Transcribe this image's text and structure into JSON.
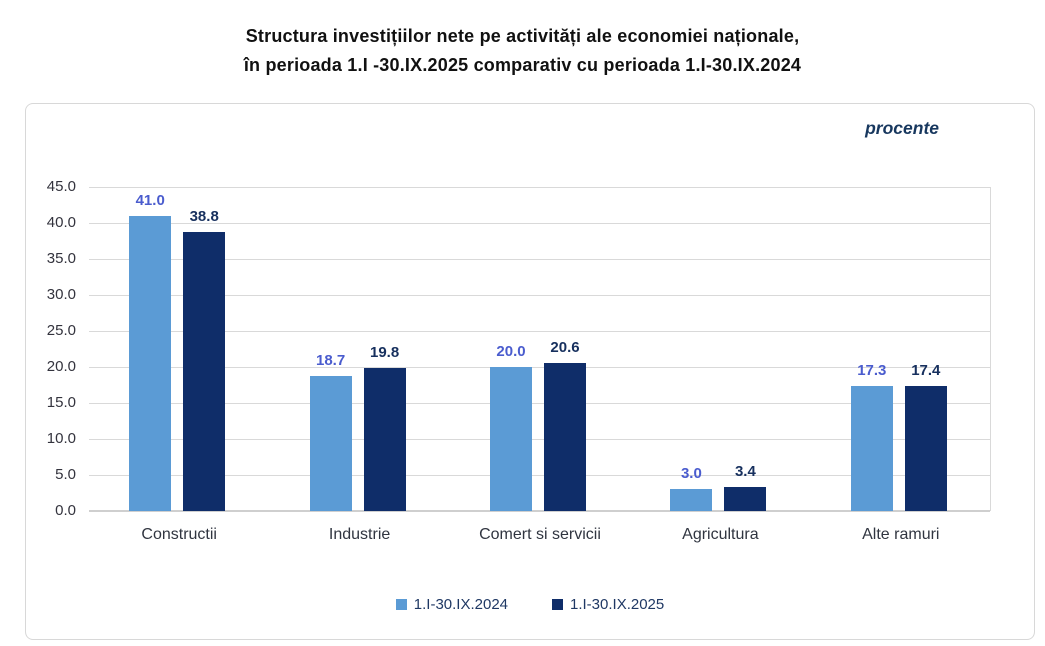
{
  "title": {
    "line1": "Structura investițiilor nete pe activități ale economiei naționale,",
    "line2": "în perioada 1.I -30.IX.2025 comparativ cu perioada 1.I-30.IX.2024"
  },
  "unit_label": "procente",
  "colors": {
    "series_2024_bar": "#5b9bd5",
    "series_2025_bar": "#0f2d69",
    "series_2024_value_label": "#4a5cce",
    "series_2025_value_label": "#17305e",
    "gridline": "#d9d9d9",
    "axis_text": "#33333d",
    "legend_text": "#1f3864",
    "unit_text": "#17375e",
    "chart_border": "#d8d8d8"
  },
  "chart_data": {
    "type": "bar",
    "title": "Structura investițiilor nete pe activități ale economiei naționale, în perioada 1.I -30.IX.2025 comparativ cu perioada 1.I-30.IX.2024",
    "categories": [
      "Constructii",
      "Industrie",
      "Comert si servicii",
      "Agricultura",
      "Alte ramuri"
    ],
    "series": [
      {
        "name": "1.I-30.IX.2024",
        "values": [
          41.0,
          18.7,
          20.0,
          3.0,
          17.3
        ],
        "color": "#5b9bd5",
        "label_color": "#4a5cce"
      },
      {
        "name": "1.I-30.IX.2025",
        "values": [
          38.8,
          19.8,
          20.6,
          3.4,
          17.4
        ],
        "color": "#0f2d69",
        "label_color": "#17305e"
      }
    ],
    "xlabel": "",
    "ylabel": "procente",
    "ylim": [
      0,
      45
    ],
    "ytick_step": 5,
    "value_label_decimals": 1,
    "grid": true,
    "legend_position": "bottom"
  }
}
